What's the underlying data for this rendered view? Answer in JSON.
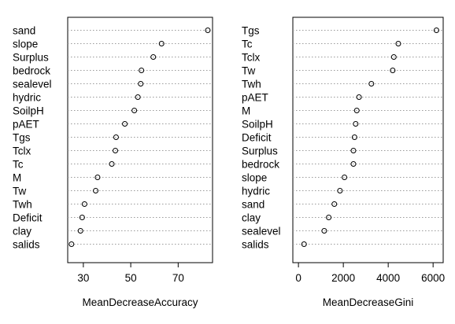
{
  "chart_data": [
    {
      "type": "dotchart",
      "xlabel": "MeanDecreaseAccuracy",
      "xlim": [
        23.4,
        84.5
      ],
      "xticks": [
        30,
        50,
        70
      ],
      "grid": "dotted horizontal lines",
      "categories": [
        "sand",
        "slope",
        "Surplus",
        "bedrock",
        "sealevel",
        "hydric",
        "SoilpH",
        "pAET",
        "Tgs",
        "Tclx",
        "Tc",
        "M",
        "Tw",
        "Twh",
        "Deficit",
        "clay",
        "salids"
      ],
      "values": [
        82.5,
        63.0,
        59.5,
        54.5,
        54.2,
        53.0,
        51.5,
        47.5,
        43.8,
        43.5,
        42.0,
        36.0,
        35.2,
        30.5,
        29.5,
        28.8,
        25.0
      ]
    },
    {
      "type": "dotchart",
      "xlabel": "MeanDecreaseGini",
      "xlim": [
        -250,
        6450
      ],
      "xticks": [
        0,
        2000,
        4000,
        6000
      ],
      "grid": "dotted horizontal lines",
      "categories": [
        "Tgs",
        "Tc",
        "Tclx",
        "Tw",
        "Twh",
        "pAET",
        "M",
        "SoilpH",
        "Deficit",
        "Surplus",
        "bedrock",
        "slope",
        "hydric",
        "sand",
        "clay",
        "sealevel",
        "salids"
      ],
      "values": [
        6150,
        4450,
        4250,
        4200,
        3250,
        2700,
        2600,
        2550,
        2500,
        2450,
        2450,
        2050,
        1850,
        1600,
        1350,
        1150,
        250
      ]
    }
  ]
}
